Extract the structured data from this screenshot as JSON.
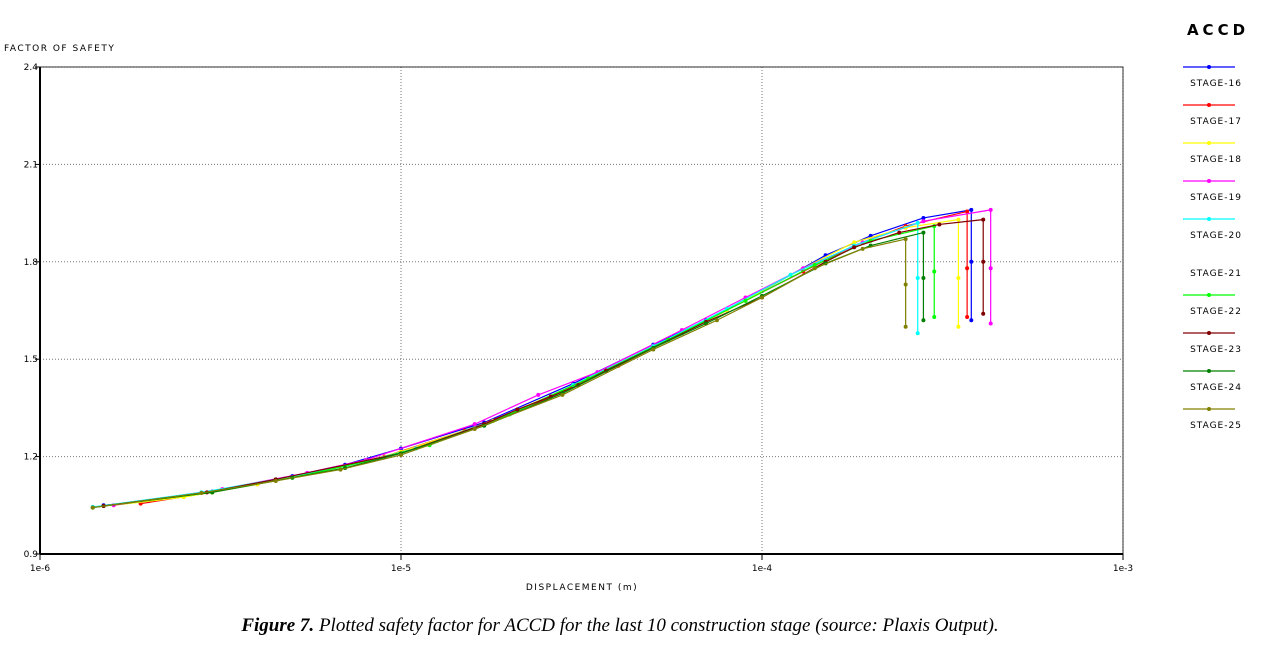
{
  "chart_data": {
    "type": "line",
    "title": "ACCD",
    "ylabel": "FACTOR OF SAFETY",
    "xlabel": "DISPLACEMENT (m)",
    "caption_label": "Figure 7.",
    "caption_text": "Plotted safety factor for ACCD for the last 10 construction stage (source: Plaxis Output).",
    "xscale": "log",
    "grid": true,
    "xlim": [
      1e-06,
      0.001
    ],
    "xticks": [
      {
        "value": 1e-06,
        "label": "1e-6"
      },
      {
        "value": 1e-05,
        "label": "1e-5"
      },
      {
        "value": 0.0001,
        "label": "1e-4"
      },
      {
        "value": 0.001,
        "label": "1e-3"
      }
    ],
    "ylim": [
      0.9,
      2.4
    ],
    "yticks": [
      0.9,
      1.2,
      1.5,
      1.8,
      2.1,
      2.4
    ],
    "series": [
      {
        "name": "STAGE-16",
        "color": "#0000ff",
        "x": [
          1.5e-06,
          2e-06,
          3e-06,
          5e-06,
          7e-06,
          1e-05,
          1.7e-05,
          3e-05,
          5e-05,
          7e-05,
          0.0001,
          0.00015,
          0.0002,
          0.00028,
          0.00038,
          0.00038,
          0.00038
        ],
        "values": [
          1.05,
          1.063,
          1.092,
          1.14,
          1.175,
          1.225,
          1.305,
          1.425,
          1.545,
          1.62,
          1.71,
          1.82,
          1.88,
          1.935,
          1.96,
          1.8,
          1.62
        ]
      },
      {
        "name": "STAGE-17",
        "color": "#ff0000",
        "x": [
          1.9e-06,
          3e-06,
          4e-06,
          6e-06,
          9e-06,
          1.5e-05,
          2.5e-05,
          4e-05,
          6e-05,
          9e-05,
          0.00013,
          0.00018,
          0.00025,
          0.00037,
          0.00037,
          0.00037
        ],
        "values": [
          1.055,
          1.09,
          1.115,
          1.155,
          1.2,
          1.28,
          1.375,
          1.48,
          1.58,
          1.68,
          1.77,
          1.85,
          1.91,
          1.955,
          1.78,
          1.63
        ]
      },
      {
        "name": "STAGE-18",
        "color": "#ffff00",
        "x": [
          1.6e-06,
          2.5e-06,
          4e-06,
          7e-06,
          1e-05,
          1.8e-05,
          3e-05,
          5e-05,
          8e-05,
          0.00012,
          0.00018,
          0.00025,
          0.00035,
          0.00035,
          0.00035
        ],
        "values": [
          1.05,
          1.075,
          1.115,
          1.17,
          1.215,
          1.31,
          1.42,
          1.54,
          1.65,
          1.76,
          1.86,
          1.905,
          1.93,
          1.75,
          1.6
        ]
      },
      {
        "name": "STAGE-19",
        "color": "#ff00ff",
        "x": [
          1.6e-06,
          3.2e-06,
          5.5e-06,
          8e-06,
          1.6e-05,
          2.4e-05,
          3.5e-05,
          6e-05,
          9e-05,
          0.00013,
          0.00019,
          0.00028,
          0.00043,
          0.00043,
          0.00043
        ],
        "values": [
          1.05,
          1.1,
          1.15,
          1.19,
          1.3,
          1.39,
          1.46,
          1.59,
          1.69,
          1.78,
          1.86,
          1.925,
          1.96,
          1.78,
          1.61
        ]
      },
      {
        "name": "STAGE-20",
        "color": "#00ffff",
        "x": [
          1.4e-06,
          2.8e-06,
          4.5e-06,
          7e-06,
          1.1e-05,
          2e-05,
          3e-05,
          5e-05,
          8e-05,
          0.00012,
          0.00018,
          0.00027,
          0.00027,
          0.00027
        ],
        "values": [
          1.045,
          1.09,
          1.13,
          1.17,
          1.225,
          1.33,
          1.42,
          1.54,
          1.655,
          1.76,
          1.85,
          1.92,
          1.75,
          1.58
        ]
      },
      {
        "name": "STAGE-21",
        "color": "#ffffff",
        "x": [],
        "values": []
      },
      {
        "name": "STAGE-22",
        "color": "#00ff00",
        "x": [
          1.5e-06,
          3e-06,
          5e-06,
          8e-06,
          1.2e-05,
          2e-05,
          3.3e-05,
          5.5e-05,
          9e-05,
          0.00014,
          0.0002,
          0.0003,
          0.0003,
          0.0003
        ],
        "values": [
          1.048,
          1.09,
          1.135,
          1.185,
          1.235,
          1.33,
          1.44,
          1.56,
          1.68,
          1.79,
          1.865,
          1.91,
          1.77,
          1.63
        ]
      },
      {
        "name": "STAGE-23",
        "color": "#800000",
        "x": [
          1.5e-06,
          2.9e-06,
          4.5e-06,
          1e-05,
          1.7e-05,
          2.1e-05,
          2.6e-05,
          3.1e-05,
          3.7e-05,
          7e-05,
          0.0001,
          0.00015,
          0.00018,
          0.00024,
          0.00031,
          0.00041,
          0.00041,
          0.00041
        ],
        "values": [
          1.048,
          1.09,
          1.13,
          1.21,
          1.3,
          1.345,
          1.385,
          1.42,
          1.465,
          1.615,
          1.69,
          1.8,
          1.845,
          1.89,
          1.915,
          1.93,
          1.8,
          1.64
        ]
      },
      {
        "name": "STAGE-24",
        "color": "#008000",
        "x": [
          1.4e-06,
          3e-06,
          5e-06,
          7e-06,
          1e-05,
          1.7e-05,
          2.8e-05,
          5e-05,
          7e-05,
          0.0001,
          0.00015,
          0.0002,
          0.00028,
          0.00028,
          0.00028
        ],
        "values": [
          1.043,
          1.09,
          1.135,
          1.165,
          1.21,
          1.295,
          1.395,
          1.535,
          1.61,
          1.695,
          1.795,
          1.85,
          1.89,
          1.75,
          1.62
        ]
      },
      {
        "name": "STAGE-25",
        "color": "#808000",
        "x": [
          1.4e-06,
          2.8e-06,
          4.5e-06,
          6.8e-06,
          1e-05,
          1.6e-05,
          2.8e-05,
          5e-05,
          7.5e-05,
          0.0001,
          0.00014,
          0.00019,
          0.00025,
          0.00025,
          0.00025
        ],
        "values": [
          1.043,
          1.088,
          1.125,
          1.16,
          1.205,
          1.285,
          1.39,
          1.53,
          1.62,
          1.69,
          1.78,
          1.84,
          1.87,
          1.73,
          1.6
        ]
      }
    ]
  }
}
